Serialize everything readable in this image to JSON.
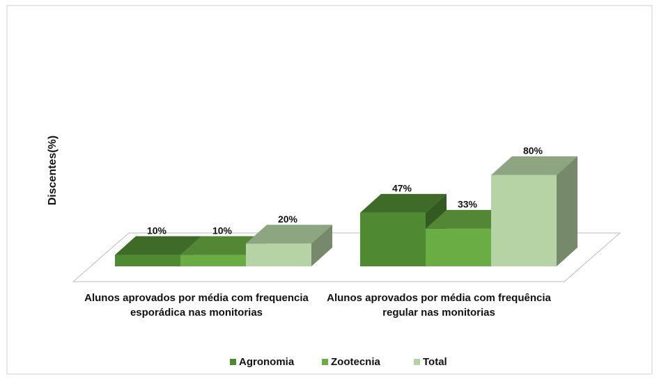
{
  "chart_data": {
    "type": "bar3d",
    "y_label": "Discentes(%)",
    "categories": [
      "Alunos aprovados por média com frequencia esporádica nas monitorias",
      "Alunos aprovados por média com frequência regular nas monitorias"
    ],
    "series": [
      {
        "name": "Agronomia",
        "color": "#4f8a33",
        "values": [
          10,
          47
        ],
        "value_labels": [
          "10%",
          "47%"
        ]
      },
      {
        "name": "Zootecnia",
        "color": "#6aad45",
        "values": [
          10,
          33
        ],
        "value_labels": [
          "10%",
          "33%"
        ]
      },
      {
        "name": "Total",
        "color": "#b5d3a5",
        "values": [
          20,
          80
        ],
        "value_labels": [
          "20%",
          "80%"
        ]
      }
    ],
    "legend": "bottom"
  }
}
